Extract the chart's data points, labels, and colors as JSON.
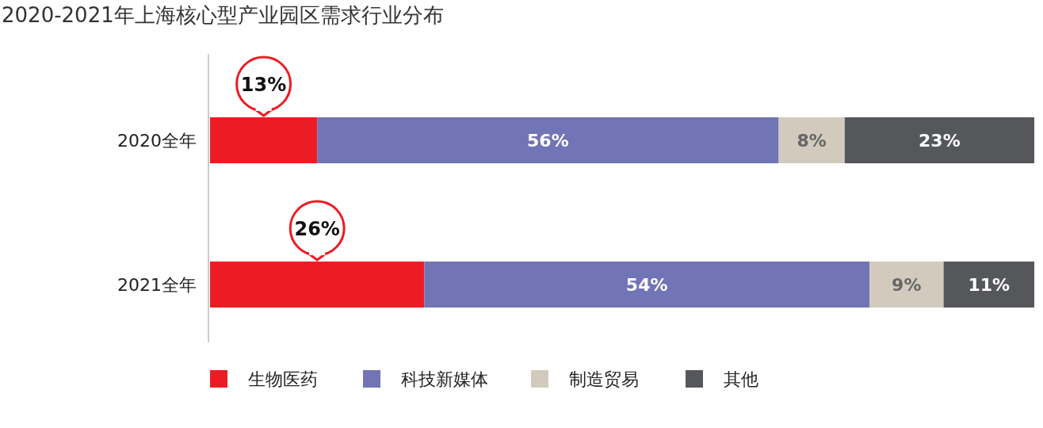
{
  "chart_data": {
    "type": "bar",
    "orientation": "horizontal",
    "stacked": true,
    "title": "2020-2021年上海核心型产业园区需求行业分布",
    "categories": [
      "2020全年",
      "2021全年"
    ],
    "legend": "bottom",
    "series": [
      {
        "name": "生物医药",
        "color": "#ed1c24",
        "values": [
          13,
          26
        ],
        "value_labels": [
          "13%",
          "26%"
        ]
      },
      {
        "name": "科技新媒体",
        "color": "#7174b5",
        "values": [
          56,
          54
        ],
        "value_labels": [
          "56%",
          "54%"
        ]
      },
      {
        "name": "制造贸易",
        "color": "#d2cbbd",
        "values": [
          8,
          9
        ],
        "value_labels": [
          "8%",
          "9%"
        ]
      },
      {
        "name": "其他",
        "color": "#55575b",
        "values": [
          23,
          11
        ],
        "value_labels": [
          "23%",
          "11%"
        ]
      }
    ]
  }
}
